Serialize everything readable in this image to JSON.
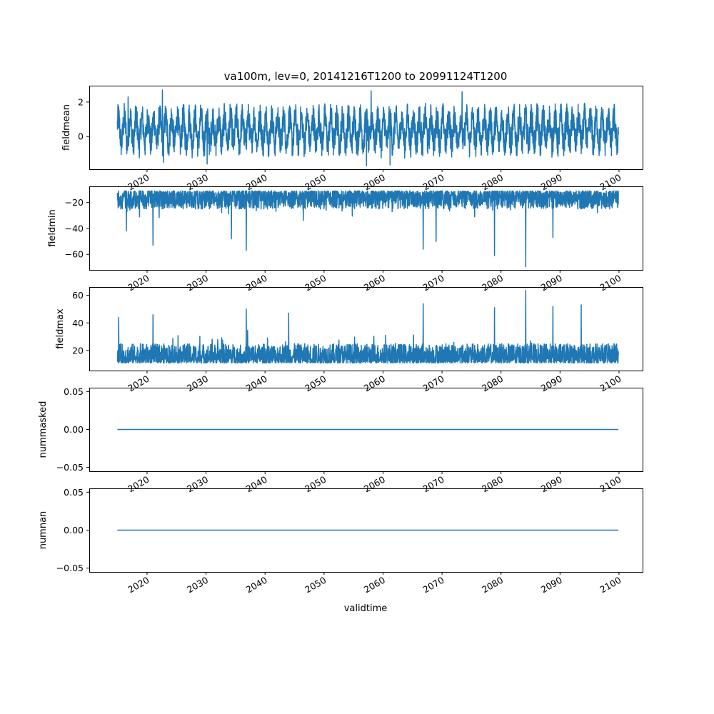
{
  "chart_data": {
    "type": "line",
    "title": "va100m, lev=0, 20141216T1200 to 20991124T1200",
    "xlabel": "validtime",
    "xlim": [
      2010.2,
      2104.0
    ],
    "x_range": [
      2014.96,
      2099.9
    ],
    "x_ticks": [
      "2020",
      "2030",
      "2040",
      "2050",
      "2060",
      "2070",
      "2080",
      "2090",
      "2100"
    ],
    "line_color": "#1f77b4",
    "grid": false,
    "legend": "none",
    "subplots": [
      {
        "ylabel": "fieldmean",
        "ylim": [
          -1.9,
          2.95
        ],
        "y_ticks": [
          "2",
          "0"
        ],
        "typical_range": [
          -1.0,
          1.7
        ],
        "extremes": [
          {
            "x": 2022.6,
            "y": 2.7
          },
          {
            "x": 2022.8,
            "y": -1.5
          },
          {
            "x": 2016.8,
            "y": 2.3
          },
          {
            "x": 2058.0,
            "y": 2.65
          },
          {
            "x": 2061.2,
            "y": -1.65
          },
          {
            "x": 2073.4,
            "y": 2.6
          },
          {
            "x": 2030.2,
            "y": -1.6
          },
          {
            "x": 2057.2,
            "y": -1.7
          }
        ]
      },
      {
        "ylabel": "fieldmin",
        "ylim": [
          -72.0,
          -7.5
        ],
        "y_ticks": [
          "−20",
          "−40",
          "−60"
        ],
        "typical_range": [
          -25.0,
          -11.0
        ],
        "extremes": [
          {
            "x": 2021.0,
            "y": -53.0
          },
          {
            "x": 2036.8,
            "y": -57.0
          },
          {
            "x": 2034.3,
            "y": -48.0
          },
          {
            "x": 2066.8,
            "y": -56.0
          },
          {
            "x": 2078.9,
            "y": -61.0
          },
          {
            "x": 2084.2,
            "y": -69.5
          },
          {
            "x": 2069.0,
            "y": -50.0
          },
          {
            "x": 2088.8,
            "y": -47.0
          },
          {
            "x": 2016.5,
            "y": -42.0
          }
        ]
      },
      {
        "ylabel": "fieldmax",
        "ylim": [
          5.5,
          66.0
        ],
        "y_ticks": [
          "20",
          "40",
          "60"
        ],
        "typical_range": [
          11.0,
          25.0
        ],
        "extremes": [
          {
            "x": 2015.2,
            "y": 44.0
          },
          {
            "x": 2021.0,
            "y": 46.0
          },
          {
            "x": 2036.8,
            "y": 50.0
          },
          {
            "x": 2044.0,
            "y": 47.0
          },
          {
            "x": 2066.8,
            "y": 54.0
          },
          {
            "x": 2078.9,
            "y": 51.0
          },
          {
            "x": 2084.2,
            "y": 63.5
          },
          {
            "x": 2088.8,
            "y": 52.0
          },
          {
            "x": 2093.6,
            "y": 53.0
          }
        ]
      },
      {
        "ylabel": "nummasked",
        "ylim": [
          -0.055,
          0.055
        ],
        "y_ticks": [
          "0.05",
          "0.00",
          "−0.05"
        ],
        "constant_value": 0.0
      },
      {
        "ylabel": "numnan",
        "ylim": [
          -0.055,
          0.055
        ],
        "y_ticks": [
          "0.05",
          "0.00",
          "−0.05"
        ],
        "constant_value": 0.0
      }
    ]
  }
}
